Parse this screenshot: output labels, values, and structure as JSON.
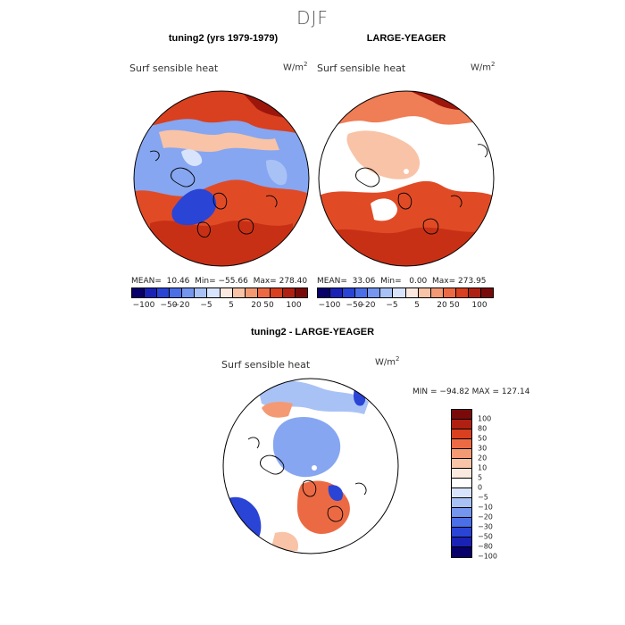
{
  "season": "DJF",
  "panels": [
    {
      "title": "tuning2 (yrs 1979-1979)",
      "variable": "Surf sensible heat",
      "unit_base": "W/m",
      "unit_exp": "2",
      "mean_label": "MEAN=",
      "mean": "10.46",
      "min_label": "Min=",
      "min": "−55.66",
      "max_label": "Max=",
      "max": "278.40"
    },
    {
      "title": "LARGE-YEAGER",
      "variable": "Surf sensible heat",
      "unit_base": "W/m",
      "unit_exp": "2",
      "mean_label": "MEAN=",
      "mean": "33.06",
      "min_label": "Min=",
      "min": "0.00",
      "max_label": "Max=",
      "max": "273.95"
    },
    {
      "title": "tuning2 - LARGE-YEAGER",
      "variable": "Surf sensible heat",
      "unit_base": "W/m",
      "unit_exp": "2",
      "minmax": "MIN = −94.82  MAX = 127.14"
    }
  ],
  "colorbar_main": {
    "colors": [
      "#08006a",
      "#1a22b5",
      "#2a44d6",
      "#4b6fe6",
      "#7596ef",
      "#a9c2f6",
      "#d8e4fb",
      "#fbe9df",
      "#f8c3a6",
      "#f39a74",
      "#ec6a43",
      "#d8401f",
      "#b02012",
      "#7a0a0a"
    ],
    "labels": [
      "−100",
      "−50",
      "−20",
      "−5",
      "5",
      "20",
      "50",
      "100"
    ]
  },
  "colorbar_diff": {
    "colors": [
      "#7a0a0a",
      "#b02012",
      "#d8401f",
      "#ec6a43",
      "#f39a74",
      "#f8c3a6",
      "#fbe9df",
      "#ffffff",
      "#d8e4fb",
      "#a9c2f6",
      "#7596ef",
      "#4b6fe6",
      "#2a44d6",
      "#1a22b5",
      "#08006a"
    ],
    "labels": [
      "100",
      "80",
      "50",
      "30",
      "20",
      "10",
      "5",
      "0",
      "−5",
      "−10",
      "−20",
      "−30",
      "−50",
      "−80",
      "−100"
    ]
  },
  "legend_colors": {
    "strong_warm": "#c0301a",
    "warm": "#e8643e",
    "light_warm": "#f5b497",
    "pale": "#fbe9df",
    "light_cool": "#a9c2f6",
    "cool": "#7596ef",
    "strong_cool": "#2a44d6"
  }
}
